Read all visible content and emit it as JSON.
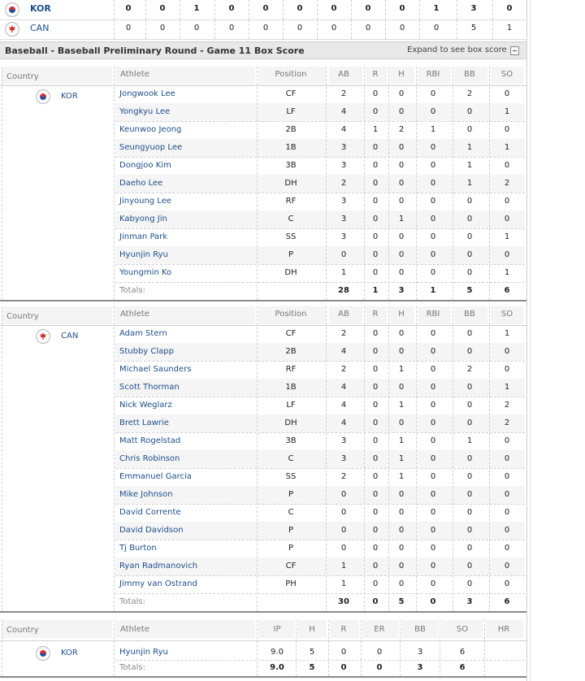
{
  "linescore": [
    {
      "code": "KOR",
      "flag": "kor-flag-icon",
      "innings": [
        "0",
        "0",
        "1",
        "0",
        "0",
        "0",
        "0",
        "0",
        "0",
        "1",
        "3",
        "0"
      ],
      "bold": true
    },
    {
      "code": "CAN",
      "flag": "can-flag-icon",
      "innings": [
        "0",
        "0",
        "0",
        "0",
        "0",
        "0",
        "0",
        "0",
        "0",
        "0",
        "5",
        "1"
      ],
      "bold": false
    }
  ],
  "section": {
    "title": "Baseball - Baseball Preliminary Round - Game 11 Box Score",
    "expand_label": "Expand to see box score"
  },
  "batting_headers": {
    "country": "Country",
    "athlete": "Athlete",
    "position": "Position",
    "stats": [
      "AB",
      "R",
      "H",
      "RBI",
      "BB",
      "SO"
    ]
  },
  "teams": [
    {
      "code": "KOR",
      "flag": "kor-flag-icon",
      "players": [
        {
          "name": "Jongwook Lee",
          "pos": "CF",
          "stats": [
            "2",
            "0",
            "0",
            "0",
            "2",
            "0"
          ]
        },
        {
          "name": "Yongkyu Lee",
          "pos": "LF",
          "stats": [
            "4",
            "0",
            "0",
            "0",
            "0",
            "1"
          ]
        },
        {
          "name": "Keunwoo Jeong",
          "pos": "2B",
          "stats": [
            "4",
            "1",
            "2",
            "1",
            "0",
            "0"
          ]
        },
        {
          "name": "Seungyuop Lee",
          "pos": "1B",
          "stats": [
            "3",
            "0",
            "0",
            "0",
            "1",
            "1"
          ]
        },
        {
          "name": "Dongjoo Kim",
          "pos": "3B",
          "stats": [
            "3",
            "0",
            "0",
            "0",
            "1",
            "0"
          ]
        },
        {
          "name": "Daeho Lee",
          "pos": "DH",
          "stats": [
            "2",
            "0",
            "0",
            "0",
            "1",
            "2"
          ]
        },
        {
          "name": "Jinyoung Lee",
          "pos": "RF",
          "stats": [
            "3",
            "0",
            "0",
            "0",
            "0",
            "0"
          ]
        },
        {
          "name": "Kabyong Jin",
          "pos": "C",
          "stats": [
            "3",
            "0",
            "1",
            "0",
            "0",
            "0"
          ]
        },
        {
          "name": "Jinman Park",
          "pos": "SS",
          "stats": [
            "3",
            "0",
            "0",
            "0",
            "0",
            "1"
          ]
        },
        {
          "name": "Hyunjin Ryu",
          "pos": "P",
          "stats": [
            "0",
            "0",
            "0",
            "0",
            "0",
            "0"
          ]
        },
        {
          "name": "Youngmin Ko",
          "pos": "DH",
          "stats": [
            "1",
            "0",
            "0",
            "0",
            "0",
            "1"
          ]
        }
      ],
      "totals_label": "Totals:",
      "totals": [
        "28",
        "1",
        "3",
        "1",
        "5",
        "6"
      ]
    },
    {
      "code": "CAN",
      "flag": "can-flag-icon",
      "players": [
        {
          "name": "Adam Stern",
          "pos": "CF",
          "stats": [
            "2",
            "0",
            "0",
            "0",
            "0",
            "1"
          ]
        },
        {
          "name": "Stubby Clapp",
          "pos": "2B",
          "stats": [
            "4",
            "0",
            "0",
            "0",
            "0",
            "0"
          ]
        },
        {
          "name": "Michael Saunders",
          "pos": "RF",
          "stats": [
            "2",
            "0",
            "1",
            "0",
            "2",
            "0"
          ]
        },
        {
          "name": "Scott Thorman",
          "pos": "1B",
          "stats": [
            "4",
            "0",
            "0",
            "0",
            "0",
            "1"
          ]
        },
        {
          "name": "Nick Weglarz",
          "pos": "LF",
          "stats": [
            "4",
            "0",
            "1",
            "0",
            "0",
            "2"
          ]
        },
        {
          "name": "Brett Lawrie",
          "pos": "DH",
          "stats": [
            "4",
            "0",
            "0",
            "0",
            "0",
            "2"
          ]
        },
        {
          "name": "Matt Rogelstad",
          "pos": "3B",
          "stats": [
            "3",
            "0",
            "1",
            "0",
            "1",
            "0"
          ]
        },
        {
          "name": "Chris Robinson",
          "pos": "C",
          "stats": [
            "3",
            "0",
            "1",
            "0",
            "0",
            "0"
          ]
        },
        {
          "name": "Emmanuel Garcia",
          "pos": "SS",
          "stats": [
            "2",
            "0",
            "1",
            "0",
            "0",
            "0"
          ]
        },
        {
          "name": "Mike Johnson",
          "pos": "P",
          "stats": [
            "0",
            "0",
            "0",
            "0",
            "0",
            "0"
          ]
        },
        {
          "name": "David Corrente",
          "pos": "C",
          "stats": [
            "0",
            "0",
            "0",
            "0",
            "0",
            "0"
          ]
        },
        {
          "name": "David Davidson",
          "pos": "P",
          "stats": [
            "0",
            "0",
            "0",
            "0",
            "0",
            "0"
          ]
        },
        {
          "name": "Tj Burton",
          "pos": "P",
          "stats": [
            "0",
            "0",
            "0",
            "0",
            "0",
            "0"
          ]
        },
        {
          "name": "Ryan Radmanovich",
          "pos": "CF",
          "stats": [
            "1",
            "0",
            "0",
            "0",
            "0",
            "0"
          ]
        },
        {
          "name": "Jimmy van Ostrand",
          "pos": "PH",
          "stats": [
            "1",
            "0",
            "0",
            "0",
            "0",
            "0"
          ]
        }
      ],
      "totals_label": "Totals:",
      "totals": [
        "30",
        "0",
        "5",
        "0",
        "3",
        "6"
      ]
    }
  ],
  "pitching_headers": {
    "country": "Country",
    "athlete": "Athlete",
    "stats": [
      "IP",
      "H",
      "R",
      "ER",
      "BB",
      "SO",
      "HR"
    ]
  },
  "pitching": {
    "code": "KOR",
    "flag": "kor-flag-icon",
    "players": [
      {
        "name": "Hyunjin Ryu",
        "stats": [
          "9.0",
          "5",
          "0",
          "0",
          "3",
          "6",
          ""
        ]
      }
    ],
    "totals_label": "Totals:",
    "totals": [
      "9.0",
      "5",
      "0",
      "0",
      "3",
      "6",
      ""
    ]
  }
}
